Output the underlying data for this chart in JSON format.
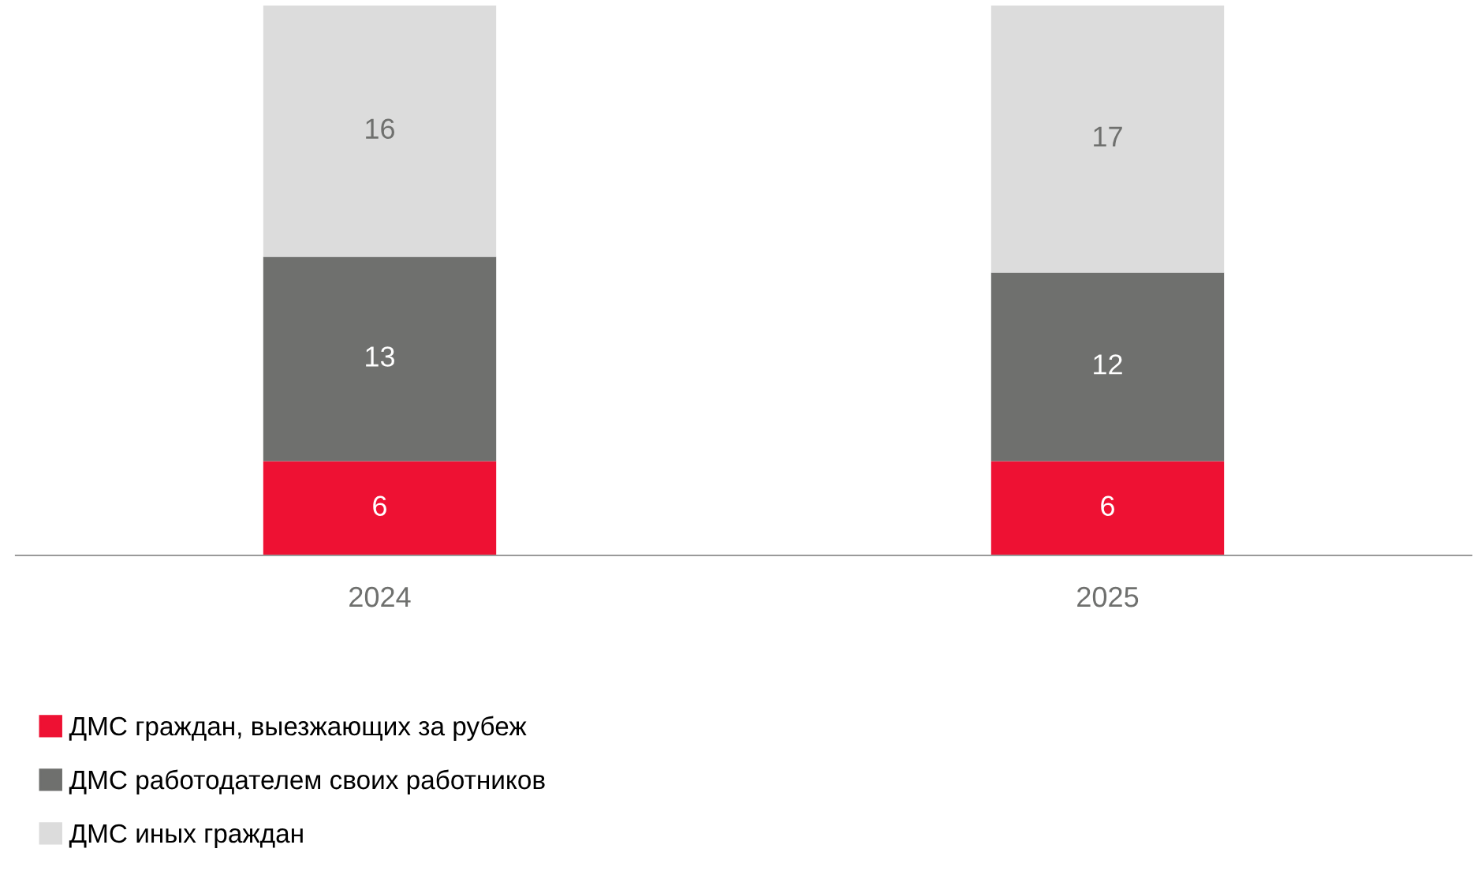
{
  "chart_data": {
    "type": "bar",
    "stacked": true,
    "categories": [
      "2024",
      "2025"
    ],
    "series": [
      {
        "name": "ДМС граждан, выезжающих за рубеж",
        "color": "#ee1133",
        "values": [
          6,
          6
        ]
      },
      {
        "name": "ДМС работодателем своих работников",
        "color": "#6f706e",
        "values": [
          13,
          12
        ]
      },
      {
        "name": "ДМС иных граждан",
        "color": "#dcdcdc",
        "values": [
          16,
          17
        ]
      }
    ],
    "data_labels": true,
    "legend": "bottom left",
    "grid": false,
    "tick_labels": "x"
  }
}
